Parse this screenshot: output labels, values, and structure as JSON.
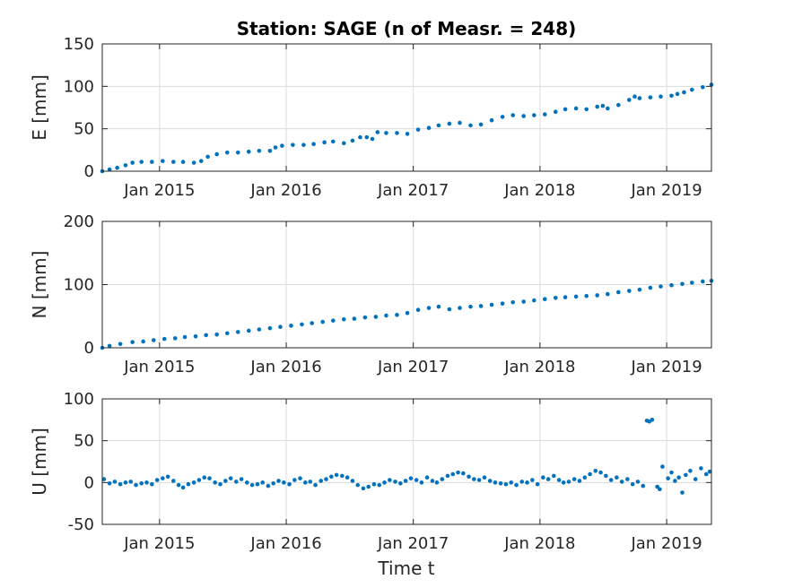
{
  "chart_data": {
    "type": "scatter",
    "title": "Station: SAGE (n of Measr. = 248)",
    "xlabel": "Time t",
    "x_tick_labels": [
      "Jan 2015",
      "Jan 2016",
      "Jan 2017",
      "Jan 2018",
      "Jan 2019"
    ],
    "x_tick_dates": [
      "2015-01-01",
      "2016-01-01",
      "2017-01-01",
      "2018-01-01",
      "2019-01-01"
    ],
    "xlim": [
      "2014-07-20",
      "2019-05-10"
    ],
    "grid": true,
    "color": "#0072bd",
    "panels": [
      {
        "name": "E",
        "ylabel": "E [mm]",
        "ylim": [
          0,
          150
        ],
        "yticks": [
          0,
          50,
          100,
          150
        ],
        "points": [
          [
            "2014-07-20",
            0
          ],
          [
            "2014-08-10",
            2
          ],
          [
            "2014-09-01",
            4
          ],
          [
            "2014-09-25",
            7
          ],
          [
            "2014-10-15",
            10
          ],
          [
            "2014-11-10",
            11
          ],
          [
            "2014-12-10",
            11
          ],
          [
            "2015-01-10",
            12
          ],
          [
            "2015-02-10",
            11
          ],
          [
            "2015-03-10",
            11
          ],
          [
            "2015-04-10",
            10
          ],
          [
            "2015-05-01",
            12
          ],
          [
            "2015-05-20",
            17
          ],
          [
            "2015-06-15",
            20
          ],
          [
            "2015-07-15",
            22
          ],
          [
            "2015-08-15",
            22
          ],
          [
            "2015-09-15",
            23
          ],
          [
            "2015-10-15",
            24
          ],
          [
            "2015-11-15",
            24
          ],
          [
            "2015-12-01",
            28
          ],
          [
            "2015-12-20",
            30
          ],
          [
            "2016-01-20",
            31
          ],
          [
            "2016-02-20",
            31
          ],
          [
            "2016-03-20",
            32
          ],
          [
            "2016-04-20",
            34
          ],
          [
            "2016-05-15",
            35
          ],
          [
            "2016-06-15",
            33
          ],
          [
            "2016-07-10",
            36
          ],
          [
            "2016-08-01",
            40
          ],
          [
            "2016-08-20",
            40
          ],
          [
            "2016-09-05",
            38
          ],
          [
            "2016-09-20",
            46
          ],
          [
            "2016-10-15",
            45
          ],
          [
            "2016-11-15",
            45
          ],
          [
            "2016-12-15",
            44
          ],
          [
            "2017-01-15",
            49
          ],
          [
            "2017-02-15",
            51
          ],
          [
            "2017-03-15",
            54
          ],
          [
            "2017-04-15",
            56
          ],
          [
            "2017-05-15",
            57
          ],
          [
            "2017-06-15",
            54
          ],
          [
            "2017-07-15",
            55
          ],
          [
            "2017-08-15",
            60
          ],
          [
            "2017-09-15",
            64
          ],
          [
            "2017-10-15",
            66
          ],
          [
            "2017-11-15",
            65
          ],
          [
            "2017-12-15",
            66
          ],
          [
            "2018-01-15",
            67
          ],
          [
            "2018-02-15",
            70
          ],
          [
            "2018-03-15",
            73
          ],
          [
            "2018-04-15",
            74
          ],
          [
            "2018-05-15",
            73
          ],
          [
            "2018-06-15",
            76
          ],
          [
            "2018-07-01",
            77
          ],
          [
            "2018-07-15",
            74
          ],
          [
            "2018-08-15",
            78
          ],
          [
            "2018-09-15",
            84
          ],
          [
            "2018-10-01",
            88
          ],
          [
            "2018-10-15",
            86
          ],
          [
            "2018-11-15",
            87
          ],
          [
            "2018-12-15",
            88
          ],
          [
            "2019-01-15",
            89
          ],
          [
            "2019-02-01",
            91
          ],
          [
            "2019-02-20",
            93
          ],
          [
            "2019-03-15",
            96
          ],
          [
            "2019-04-15",
            99
          ],
          [
            "2019-05-10",
            102
          ]
        ]
      },
      {
        "name": "N",
        "ylabel": "N [mm]",
        "ylim": [
          0,
          200
        ],
        "yticks": [
          0,
          100,
          200
        ],
        "points": [
          [
            "2014-07-20",
            0
          ],
          [
            "2014-08-10",
            3
          ],
          [
            "2014-09-10",
            6
          ],
          [
            "2014-10-15",
            9
          ],
          [
            "2014-11-15",
            10
          ],
          [
            "2014-12-15",
            12
          ],
          [
            "2015-01-15",
            14
          ],
          [
            "2015-02-15",
            15
          ],
          [
            "2015-03-15",
            17
          ],
          [
            "2015-04-15",
            18
          ],
          [
            "2015-05-15",
            20
          ],
          [
            "2015-06-15",
            21
          ],
          [
            "2015-07-15",
            23
          ],
          [
            "2015-08-15",
            25
          ],
          [
            "2015-09-15",
            27
          ],
          [
            "2015-10-15",
            29
          ],
          [
            "2015-11-15",
            31
          ],
          [
            "2015-12-15",
            33
          ],
          [
            "2016-01-15",
            35
          ],
          [
            "2016-02-15",
            37
          ],
          [
            "2016-03-15",
            39
          ],
          [
            "2016-04-15",
            41
          ],
          [
            "2016-05-15",
            43
          ],
          [
            "2016-06-15",
            45
          ],
          [
            "2016-07-15",
            46
          ],
          [
            "2016-08-15",
            48
          ],
          [
            "2016-09-15",
            49
          ],
          [
            "2016-10-15",
            51
          ],
          [
            "2016-11-15",
            52
          ],
          [
            "2016-12-15",
            55
          ],
          [
            "2017-01-15",
            60
          ],
          [
            "2017-02-15",
            63
          ],
          [
            "2017-03-15",
            65
          ],
          [
            "2017-04-15",
            61
          ],
          [
            "2017-05-15",
            63
          ],
          [
            "2017-06-15",
            65
          ],
          [
            "2017-07-15",
            66
          ],
          [
            "2017-08-15",
            68
          ],
          [
            "2017-09-15",
            70
          ],
          [
            "2017-10-15",
            72
          ],
          [
            "2017-11-15",
            73
          ],
          [
            "2017-12-15",
            75
          ],
          [
            "2018-01-15",
            77
          ],
          [
            "2018-02-15",
            79
          ],
          [
            "2018-03-15",
            80
          ],
          [
            "2018-04-15",
            81
          ],
          [
            "2018-05-15",
            82
          ],
          [
            "2018-06-15",
            83
          ],
          [
            "2018-07-15",
            85
          ],
          [
            "2018-08-15",
            88
          ],
          [
            "2018-09-15",
            90
          ],
          [
            "2018-10-15",
            92
          ],
          [
            "2018-11-15",
            95
          ],
          [
            "2018-12-15",
            97
          ],
          [
            "2019-01-15",
            99
          ],
          [
            "2019-02-15",
            101
          ],
          [
            "2019-03-15",
            103
          ],
          [
            "2019-04-15",
            105
          ],
          [
            "2019-05-10",
            106
          ]
        ]
      },
      {
        "name": "U",
        "ylabel": "U [mm]",
        "ylim": [
          -50,
          100
        ],
        "yticks": [
          -50,
          0,
          50,
          100
        ],
        "points": [
          [
            "2014-07-25",
            4
          ],
          [
            "2014-08-10",
            -1
          ],
          [
            "2014-08-25",
            1
          ],
          [
            "2014-09-10",
            -2
          ],
          [
            "2014-09-25",
            0
          ],
          [
            "2014-10-10",
            1
          ],
          [
            "2014-10-25",
            -3
          ],
          [
            "2014-11-10",
            -1
          ],
          [
            "2014-11-25",
            0
          ],
          [
            "2014-12-10",
            -2
          ],
          [
            "2014-12-25",
            3
          ],
          [
            "2015-01-10",
            5
          ],
          [
            "2015-01-25",
            7
          ],
          [
            "2015-02-10",
            2
          ],
          [
            "2015-02-25",
            -3
          ],
          [
            "2015-03-10",
            -6
          ],
          [
            "2015-03-25",
            -2
          ],
          [
            "2015-04-10",
            0
          ],
          [
            "2015-04-25",
            3
          ],
          [
            "2015-05-10",
            6
          ],
          [
            "2015-05-25",
            5
          ],
          [
            "2015-06-10",
            0
          ],
          [
            "2015-06-25",
            -2
          ],
          [
            "2015-07-10",
            2
          ],
          [
            "2015-07-25",
            5
          ],
          [
            "2015-08-10",
            1
          ],
          [
            "2015-08-25",
            4
          ],
          [
            "2015-09-10",
            0
          ],
          [
            "2015-09-25",
            -3
          ],
          [
            "2015-10-10",
            -2
          ],
          [
            "2015-10-25",
            0
          ],
          [
            "2015-11-10",
            -4
          ],
          [
            "2015-11-25",
            -1
          ],
          [
            "2015-12-10",
            2
          ],
          [
            "2015-12-25",
            0
          ],
          [
            "2016-01-10",
            -2
          ],
          [
            "2016-01-25",
            3
          ],
          [
            "2016-02-10",
            5
          ],
          [
            "2016-02-25",
            0
          ],
          [
            "2016-03-10",
            1
          ],
          [
            "2016-03-25",
            -3
          ],
          [
            "2016-04-10",
            2
          ],
          [
            "2016-04-25",
            4
          ],
          [
            "2016-05-10",
            7
          ],
          [
            "2016-05-25",
            9
          ],
          [
            "2016-06-10",
            8
          ],
          [
            "2016-06-25",
            6
          ],
          [
            "2016-07-10",
            2
          ],
          [
            "2016-07-25",
            -3
          ],
          [
            "2016-08-10",
            -7
          ],
          [
            "2016-08-25",
            -5
          ],
          [
            "2016-09-10",
            -2
          ],
          [
            "2016-09-25",
            -3
          ],
          [
            "2016-10-10",
            0
          ],
          [
            "2016-10-25",
            3
          ],
          [
            "2016-11-10",
            1
          ],
          [
            "2016-11-25",
            -1
          ],
          [
            "2016-12-10",
            2
          ],
          [
            "2016-12-25",
            5
          ],
          [
            "2017-01-10",
            3
          ],
          [
            "2017-01-25",
            0
          ],
          [
            "2017-02-10",
            6
          ],
          [
            "2017-02-25",
            2
          ],
          [
            "2017-03-10",
            0
          ],
          [
            "2017-03-25",
            4
          ],
          [
            "2017-04-10",
            8
          ],
          [
            "2017-04-25",
            10
          ],
          [
            "2017-05-10",
            12
          ],
          [
            "2017-05-25",
            11
          ],
          [
            "2017-06-10",
            7
          ],
          [
            "2017-06-25",
            4
          ],
          [
            "2017-07-10",
            3
          ],
          [
            "2017-07-25",
            6
          ],
          [
            "2017-08-10",
            2
          ],
          [
            "2017-08-25",
            0
          ],
          [
            "2017-09-10",
            -1
          ],
          [
            "2017-09-25",
            -2
          ],
          [
            "2017-10-10",
            0
          ],
          [
            "2017-10-25",
            -3
          ],
          [
            "2017-11-10",
            1
          ],
          [
            "2017-11-25",
            0
          ],
          [
            "2017-12-10",
            3
          ],
          [
            "2017-12-25",
            -2
          ],
          [
            "2018-01-10",
            6
          ],
          [
            "2018-01-25",
            4
          ],
          [
            "2018-02-10",
            8
          ],
          [
            "2018-02-25",
            3
          ],
          [
            "2018-03-10",
            0
          ],
          [
            "2018-03-25",
            1
          ],
          [
            "2018-04-10",
            4
          ],
          [
            "2018-04-25",
            2
          ],
          [
            "2018-05-10",
            6
          ],
          [
            "2018-05-25",
            10
          ],
          [
            "2018-06-10",
            14
          ],
          [
            "2018-06-25",
            12
          ],
          [
            "2018-07-10",
            8
          ],
          [
            "2018-07-25",
            3
          ],
          [
            "2018-08-10",
            6
          ],
          [
            "2018-08-25",
            1
          ],
          [
            "2018-09-10",
            4
          ],
          [
            "2018-09-25",
            -2
          ],
          [
            "2018-10-10",
            1
          ],
          [
            "2018-10-25",
            -4
          ],
          [
            "2018-11-05",
            74
          ],
          [
            "2018-11-12",
            73
          ],
          [
            "2018-11-20",
            75
          ],
          [
            "2018-12-05",
            -5
          ],
          [
            "2018-12-12",
            -8
          ],
          [
            "2018-12-20",
            19
          ],
          [
            "2019-01-05",
            5
          ],
          [
            "2019-01-15",
            12
          ],
          [
            "2019-01-25",
            2
          ],
          [
            "2019-02-05",
            6
          ],
          [
            "2019-02-15",
            -12
          ],
          [
            "2019-02-25",
            9
          ],
          [
            "2019-03-10",
            14
          ],
          [
            "2019-03-25",
            4
          ],
          [
            "2019-04-10",
            17
          ],
          [
            "2019-04-25",
            10
          ],
          [
            "2019-05-05",
            13
          ]
        ]
      }
    ]
  }
}
